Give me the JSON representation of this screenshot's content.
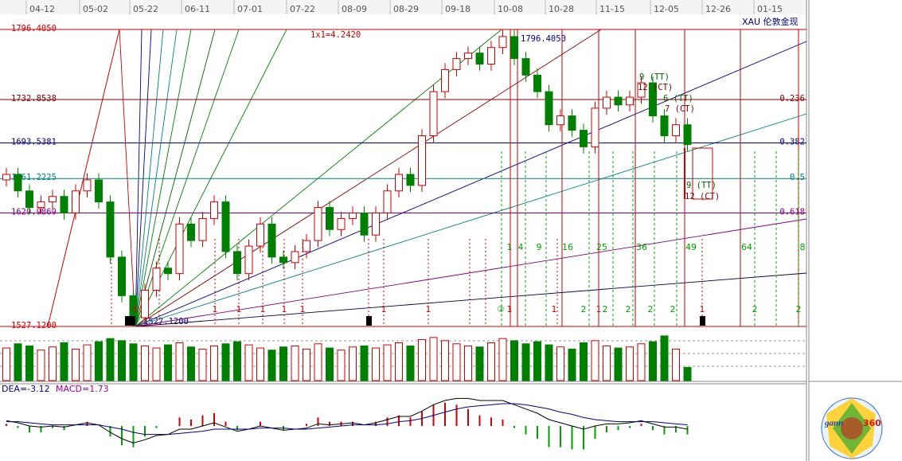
{
  "window": {
    "symbol": "XAU 伦敦金现"
  },
  "price_chart": {
    "date_labels": [
      "04-12",
      "05-02",
      "05-22",
      "06-11",
      "07-01",
      "07-22",
      "08-09",
      "08-29",
      "09-18",
      "10-08",
      "10-28",
      "11-15",
      "12-05",
      "12-26",
      "01-15"
    ],
    "ylim": [
      1527.12,
      1796.405
    ],
    "levels": [
      {
        "value": 1796.405,
        "label": "1796.4050",
        "color": "#cc0000"
      },
      {
        "value": 1732.8538,
        "label": "1732.8538",
        "color": "#800000",
        "ratio": "0.236"
      },
      {
        "value": 1693.5381,
        "label": "1693.5381",
        "color": "#000080",
        "ratio": "0.382"
      },
      {
        "value": 1661.2225,
        "label": "1661.2225",
        "color": "#008080",
        "ratio": "0.5"
      },
      {
        "value": 1629.9869,
        "label": "1629.9869",
        "color": "#800080",
        "ratio": "0.618"
      },
      {
        "value": 1527.12,
        "label": "1527.1200",
        "color": "#cc0000"
      }
    ],
    "top_label": "1x1=4.2420",
    "high_label": "1796.4050",
    "low_label": "1527.1200",
    "square_counts": [
      "1",
      "4",
      "9",
      "16",
      "25",
      "36",
      "49",
      "64",
      "8"
    ],
    "cycle_marks": [
      "①",
      "1",
      "1",
      "1",
      "1",
      "1",
      "1",
      "1",
      "②",
      "1",
      "1",
      "2",
      "1",
      "2",
      "2",
      "2",
      "2",
      "1",
      "2",
      "2"
    ],
    "annotations": [
      "9 (TT)",
      "12 (CT)",
      "6 (TT)",
      "7 (CT)",
      "9 (TT)",
      "12 (CT)"
    ],
    "candles": [
      [
        1660,
        1671,
        1654,
        1665
      ],
      [
        1665,
        1671,
        1644,
        1650
      ],
      [
        1650,
        1656,
        1629,
        1635
      ],
      [
        1635,
        1646,
        1629,
        1640
      ],
      [
        1640,
        1651,
        1634,
        1645
      ],
      [
        1645,
        1651,
        1624,
        1630
      ],
      [
        1630,
        1656,
        1624,
        1650
      ],
      [
        1650,
        1666,
        1644,
        1660
      ],
      [
        1660,
        1666,
        1634,
        1640
      ],
      [
        1640,
        1646,
        1584,
        1590
      ],
      [
        1590,
        1596,
        1549,
        1555
      ],
      [
        1555,
        1561,
        1527.12,
        1535
      ],
      [
        1535,
        1566,
        1529,
        1560
      ],
      [
        1560,
        1586,
        1554,
        1580
      ],
      [
        1580,
        1586,
        1569,
        1575
      ],
      [
        1575,
        1626,
        1569,
        1620
      ],
      [
        1620,
        1626,
        1599,
        1605
      ],
      [
        1605,
        1631,
        1599,
        1625
      ],
      [
        1625,
        1646,
        1619,
        1640
      ],
      [
        1640,
        1646,
        1589,
        1595
      ],
      [
        1595,
        1601,
        1569,
        1575
      ],
      [
        1575,
        1606,
        1569,
        1600
      ],
      [
        1600,
        1626,
        1594,
        1620
      ],
      [
        1620,
        1626,
        1584,
        1590
      ],
      [
        1590,
        1596,
        1579,
        1585
      ],
      [
        1585,
        1601,
        1579,
        1595
      ],
      [
        1595,
        1611,
        1589,
        1605
      ],
      [
        1605,
        1641,
        1599,
        1635
      ],
      [
        1635,
        1641,
        1609,
        1615
      ],
      [
        1615,
        1631,
        1609,
        1625
      ],
      [
        1625,
        1636,
        1619,
        1630
      ],
      [
        1630,
        1636,
        1604,
        1610
      ],
      [
        1610,
        1636,
        1604,
        1630
      ],
      [
        1630,
        1656,
        1624,
        1650
      ],
      [
        1650,
        1671,
        1644,
        1665
      ],
      [
        1665,
        1671,
        1649,
        1655
      ],
      [
        1655,
        1706,
        1649,
        1700
      ],
      [
        1700,
        1746,
        1694,
        1740
      ],
      [
        1740,
        1766,
        1734,
        1760
      ],
      [
        1760,
        1776,
        1754,
        1770
      ],
      [
        1770,
        1781,
        1764,
        1775
      ],
      [
        1775,
        1781,
        1759,
        1765
      ],
      [
        1765,
        1786,
        1759,
        1780
      ],
      [
        1780,
        1796.405,
        1774,
        1790
      ],
      [
        1790,
        1796,
        1764,
        1770
      ],
      [
        1770,
        1776,
        1749,
        1755
      ],
      [
        1755,
        1761,
        1734,
        1740
      ],
      [
        1740,
        1746,
        1704,
        1710
      ],
      [
        1710,
        1724,
        1704,
        1718
      ],
      [
        1718,
        1724,
        1699,
        1705
      ],
      [
        1705,
        1711,
        1684,
        1690
      ],
      [
        1690,
        1731,
        1684,
        1725
      ],
      [
        1725,
        1741,
        1719,
        1735
      ],
      [
        1735,
        1741,
        1722,
        1728
      ],
      [
        1728,
        1741,
        1722,
        1735
      ],
      [
        1735,
        1754,
        1729,
        1748
      ],
      [
        1748,
        1754,
        1712,
        1718
      ],
      [
        1718,
        1724,
        1694,
        1700
      ],
      [
        1700,
        1716,
        1694,
        1710
      ],
      [
        1710,
        1716,
        1686,
        1692
      ]
    ]
  },
  "volume": {
    "ylim": [
      0,
      100
    ],
    "values": [
      62,
      70,
      66,
      58,
      64,
      72,
      60,
      68,
      74,
      80,
      76,
      70,
      66,
      62,
      68,
      72,
      64,
      60,
      66,
      70,
      74,
      68,
      62,
      58,
      64,
      66,
      60,
      70,
      62,
      58,
      64,
      66,
      62,
      68,
      72,
      66,
      78,
      82,
      76,
      70,
      66,
      64,
      72,
      80,
      76,
      70,
      74,
      68,
      64,
      60,
      72,
      76,
      66,
      62,
      64,
      70,
      74,
      85,
      60,
      25
    ]
  },
  "macd": {
    "dea_label": "DEA=-3.12",
    "macd_label": "MACD=1.73",
    "ylim": [
      -30,
      30
    ],
    "dif": [
      5,
      3,
      0,
      -1,
      0,
      -1,
      1,
      3,
      1,
      -6,
      -12,
      -16,
      -13,
      -9,
      -8,
      -3,
      -3,
      0,
      3,
      -1,
      -5,
      -3,
      0,
      -2,
      -4,
      -3,
      -2,
      2,
      1,
      2,
      3,
      1,
      3,
      6,
      9,
      9,
      14,
      20,
      24,
      26,
      26,
      24,
      24,
      24,
      20,
      16,
      12,
      6,
      3,
      0,
      -3,
      0,
      2,
      2,
      3,
      5,
      2,
      -1,
      -1,
      -3
    ],
    "dea": [
      4,
      4,
      3,
      2,
      1,
      1,
      1,
      1,
      1,
      -1,
      -3,
      -6,
      -8,
      -8,
      -8,
      -7,
      -6,
      -5,
      -3,
      -3,
      -3,
      -3,
      -2,
      -2,
      -2,
      -3,
      -3,
      -2,
      -1,
      0,
      1,
      1,
      1,
      2,
      4,
      5,
      7,
      10,
      13,
      16,
      18,
      19,
      20,
      21,
      21,
      20,
      18,
      16,
      13,
      11,
      8,
      6,
      5,
      4,
      4,
      4,
      4,
      3,
      2,
      1
    ],
    "hist": [
      2,
      -2,
      -6,
      -6,
      -2,
      -4,
      0,
      4,
      0,
      -10,
      -18,
      -20,
      -10,
      -2,
      0,
      8,
      6,
      10,
      12,
      4,
      -4,
      0,
      4,
      0,
      -4,
      0,
      2,
      8,
      4,
      4,
      4,
      0,
      4,
      8,
      10,
      8,
      14,
      20,
      22,
      20,
      16,
      10,
      8,
      6,
      -2,
      -8,
      -12,
      -20,
      -20,
      -22,
      -22,
      -12,
      -6,
      -4,
      -2,
      2,
      -4,
      -8,
      -6,
      -8
    ]
  },
  "logo": {
    "name": "gann",
    "number": "360"
  }
}
